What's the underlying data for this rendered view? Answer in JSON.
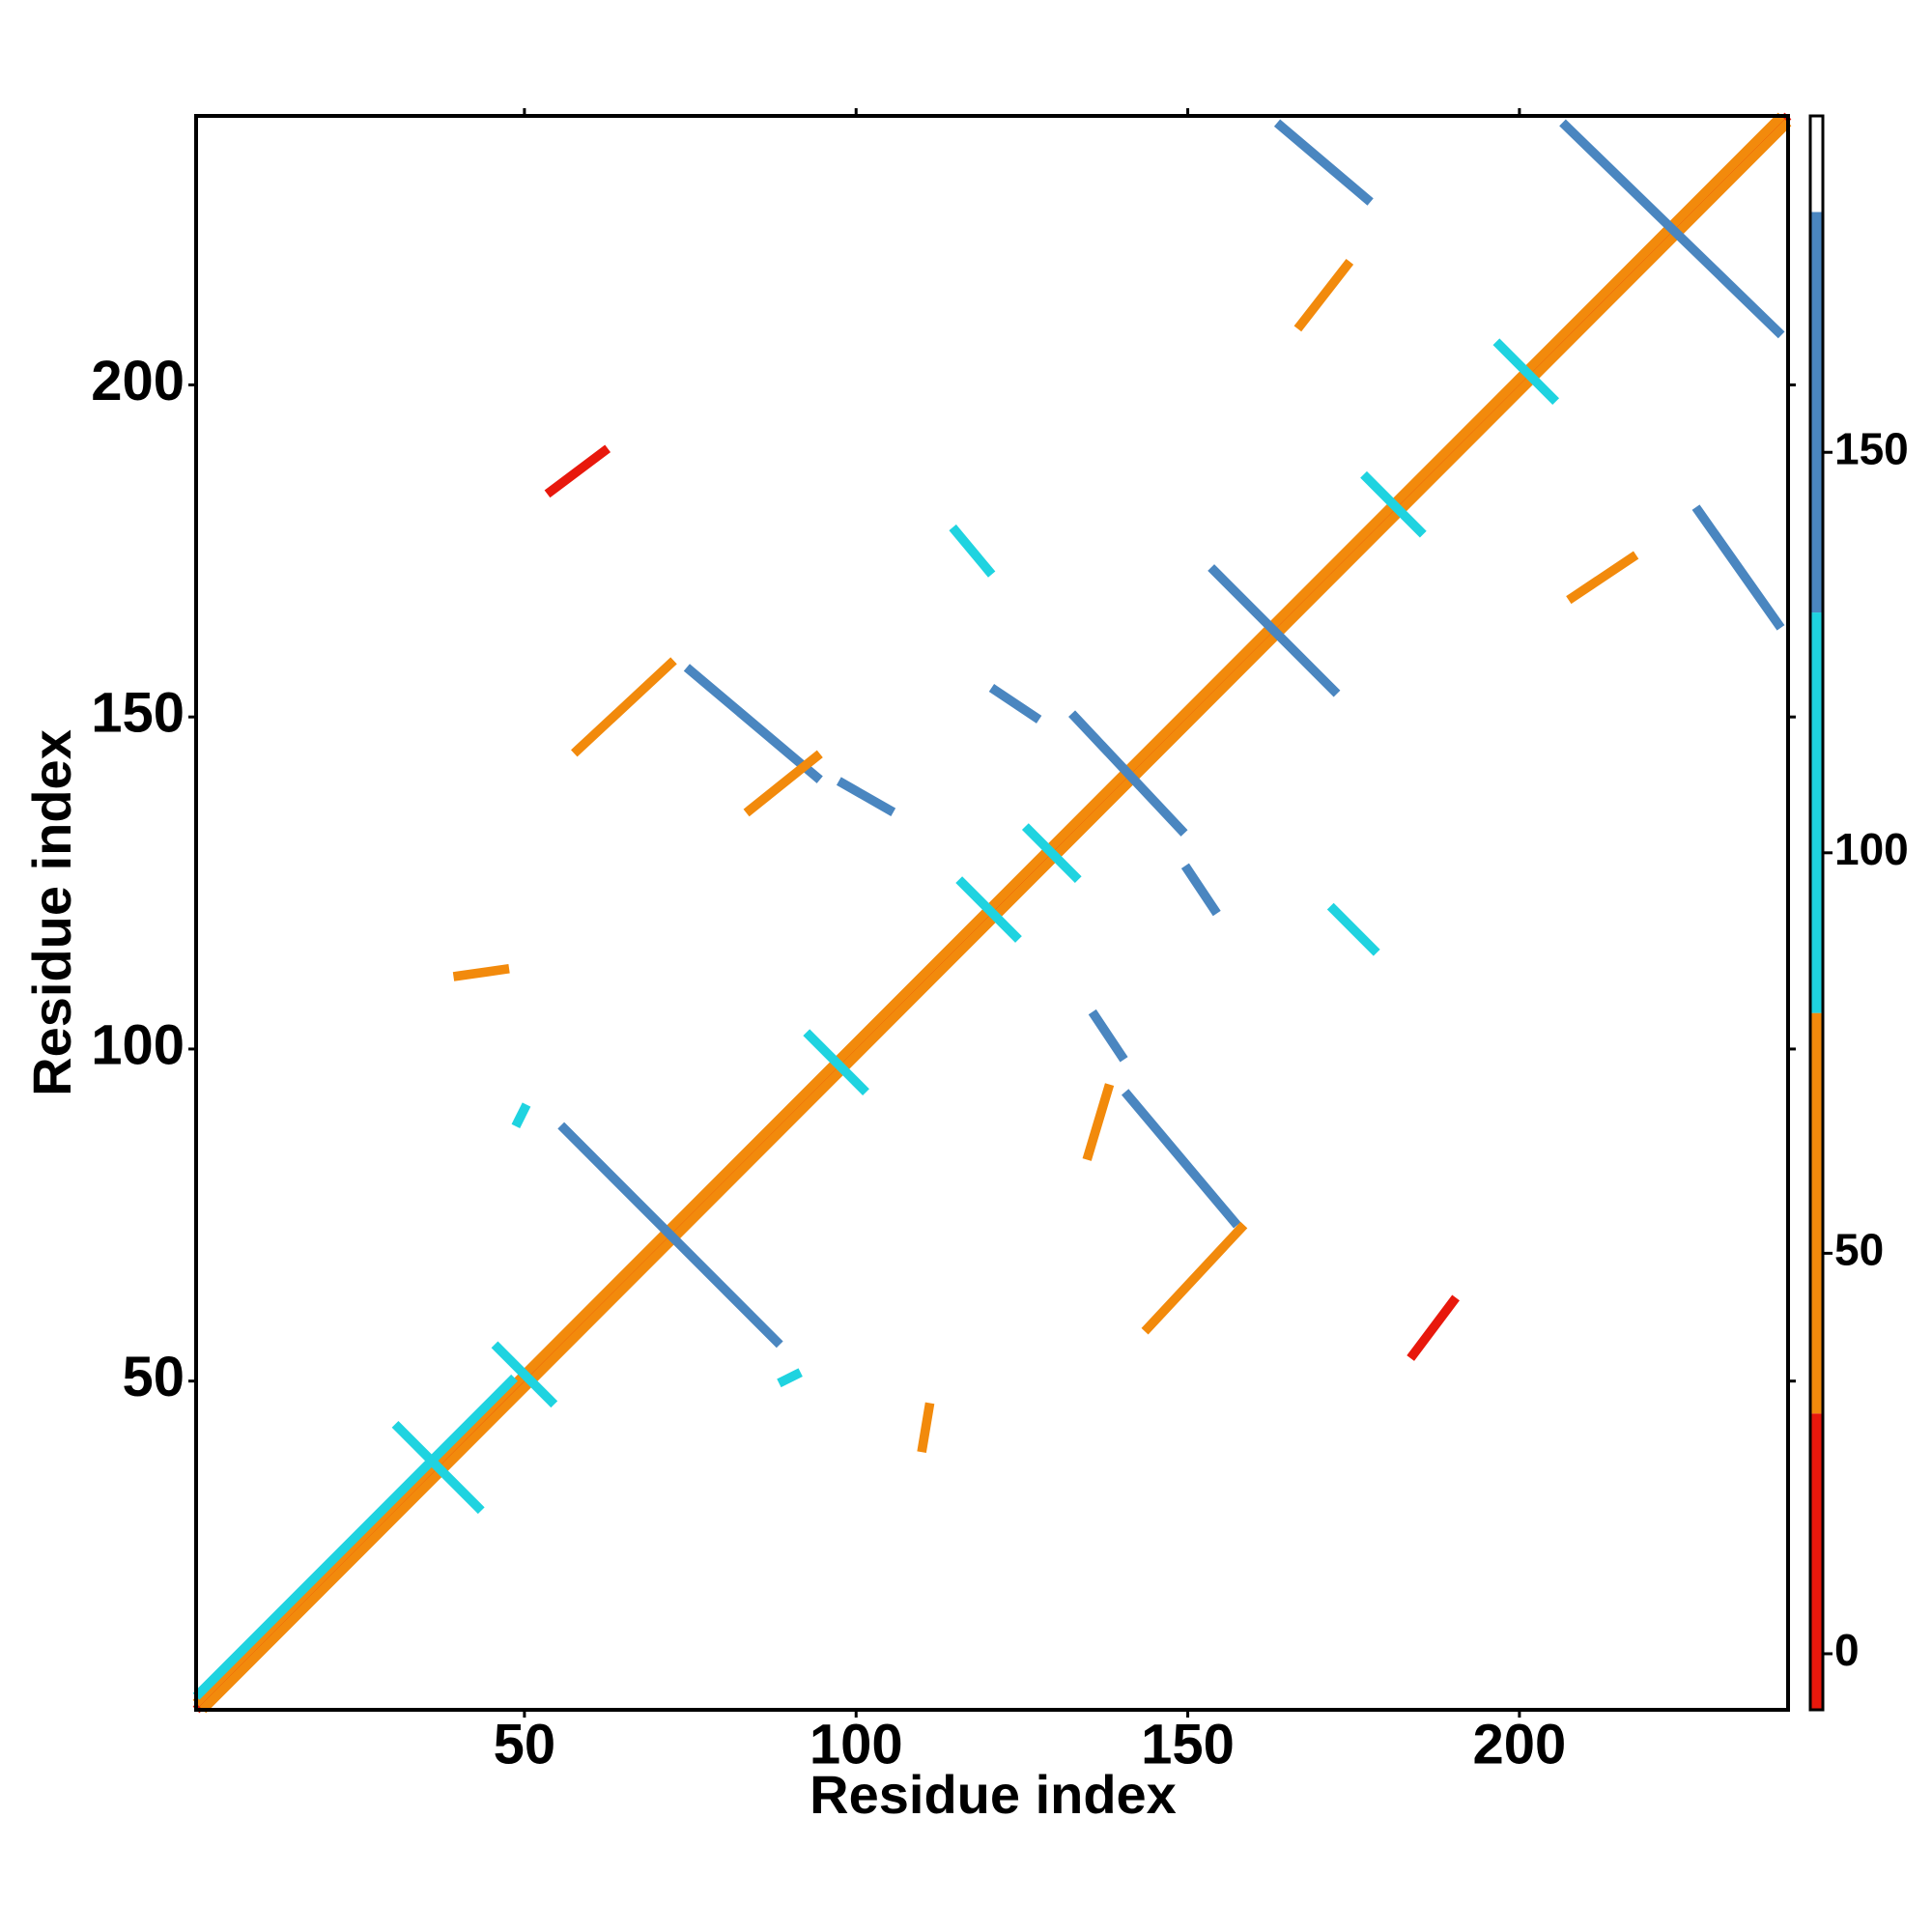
{
  "chart_data": {
    "type": "contact-map",
    "xlabel": "Residue index",
    "ylabel": "Residue index",
    "xlim": [
      0.5,
      240.5
    ],
    "ylim": [
      0.5,
      240.5
    ],
    "xticks": [
      50,
      100,
      150,
      200
    ],
    "yticks": [
      50,
      100,
      150,
      200
    ],
    "colorbar": {
      "lim": [
        -7,
        192
      ],
      "ticks": [
        0,
        50,
        100,
        150
      ],
      "bins": [
        {
          "from": -7,
          "to": 30,
          "color": "#e8180c"
        },
        {
          "from": 30,
          "to": 80,
          "color": "#f28a0c"
        },
        {
          "from": 80,
          "to": 130,
          "color": "#1fd3e0"
        },
        {
          "from": 130,
          "to": 180,
          "color": "#4a86c0"
        },
        {
          "from": 180,
          "to": 192,
          "color": "#ffffff"
        }
      ]
    },
    "streaks": [
      {
        "x": [
          1,
          240
        ],
        "y": [
          1,
          240
        ],
        "value": 5
      },
      {
        "x": [
          2,
          240
        ],
        "y": [
          1,
          239
        ],
        "value": 45
      },
      {
        "x": [
          1,
          239
        ],
        "y": [
          2,
          240
        ],
        "value": 45
      },
      {
        "x": [
          1,
          48
        ],
        "y": [
          3,
          50
        ],
        "value": 110
      },
      {
        "x": [
          56,
          88
        ],
        "y": [
          88,
          56
        ],
        "value": 160
      },
      {
        "x": [
          75,
          94
        ],
        "y": [
          157,
          141
        ],
        "value": 160
      },
      {
        "x": [
          164,
          177
        ],
        "y": [
          239,
          228
        ],
        "value": 160
      },
      {
        "x": [
          207,
          239
        ],
        "y": [
          239,
          208
        ],
        "value": 160
      },
      {
        "x": [
          154,
          172
        ],
        "y": [
          172,
          154
        ],
        "value": 160
      },
      {
        "x": [
          133,
          149
        ],
        "y": [
          150,
          133
        ],
        "value": 160
      },
      {
        "x": [
          141,
          157
        ],
        "y": [
          93,
          74
        ],
        "value": 160
      },
      {
        "x": [
          227,
          239
        ],
        "y": [
          181,
          164
        ],
        "value": 160
      },
      {
        "x": [
          98,
          105
        ],
        "y": [
          140,
          136
        ],
        "value": 160
      },
      {
        "x": [
          121,
          127
        ],
        "y": [
          154,
          150
        ],
        "value": 160
      },
      {
        "x": [
          115,
          120
        ],
        "y": [
          178,
          172
        ],
        "value": 110
      },
      {
        "x": [
          150,
          154
        ],
        "y": [
          127,
          121
        ],
        "value": 160
      },
      {
        "x": [
          136,
          140
        ],
        "y": [
          105,
          99
        ],
        "value": 160
      },
      {
        "x": [
          172,
          178
        ],
        "y": [
          121,
          115
        ],
        "value": 110
      },
      {
        "x": [
          31,
          43
        ],
        "y": [
          43,
          31
        ],
        "value": 110
      },
      {
        "x": [
          46,
          54
        ],
        "y": [
          55,
          47
        ],
        "value": 110
      },
      {
        "x": [
          93,
          101
        ],
        "y": [
          102,
          94
        ],
        "value": 110
      },
      {
        "x": [
          116,
          124
        ],
        "y": [
          125,
          117
        ],
        "value": 110
      },
      {
        "x": [
          126,
          133
        ],
        "y": [
          133,
          126
        ],
        "value": 110
      },
      {
        "x": [
          177,
          185
        ],
        "y": [
          186,
          178
        ],
        "value": 110
      },
      {
        "x": [
          197,
          205
        ],
        "y": [
          206,
          198
        ],
        "value": 110
      },
      {
        "x": [
          58,
          72
        ],
        "y": [
          145,
          158
        ],
        "value": 50
      },
      {
        "x": [
          84,
          94
        ],
        "y": [
          136,
          144
        ],
        "value": 50
      },
      {
        "x": [
          167,
          174
        ],
        "y": [
          209,
          218
        ],
        "value": 50
      },
      {
        "x": [
          208,
          217
        ],
        "y": [
          168,
          174
        ],
        "value": 50
      },
      {
        "x": [
          144,
          158
        ],
        "y": [
          58,
          73
        ],
        "value": 50
      },
      {
        "x": [
          135,
          138
        ],
        "y": [
          84,
          94
        ],
        "value": 50
      },
      {
        "x": [
          54,
          62
        ],
        "y": [
          184,
          190
        ],
        "value": 10
      },
      {
        "x": [
          184,
          190
        ],
        "y": [
          54,
          62
        ],
        "value": 10
      },
      {
        "x": [
          110,
          111
        ],
        "y": [
          40,
          46
        ],
        "value": 50
      },
      {
        "x": [
          89,
          91
        ],
        "y": [
          50,
          51
        ],
        "value": 110
      },
      {
        "x": [
          40,
          47
        ],
        "y": [
          111,
          112
        ],
        "value": 50
      },
      {
        "x": [
          49,
          50
        ],
        "y": [
          89,
          91
        ],
        "value": 110
      }
    ]
  }
}
